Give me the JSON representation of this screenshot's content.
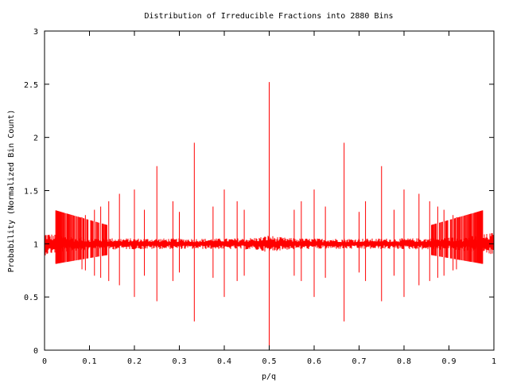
{
  "chart_data": {
    "type": "line",
    "title": "Distribution of Irreducible Fractions into 2880 Bins",
    "xlabel": "p/q",
    "ylabel": "Probability (Normalized Bin Count)",
    "xlim": [
      0,
      1
    ],
    "ylim": [
      0,
      3
    ],
    "x_ticks": [
      "0",
      "0.1",
      "0.2",
      "0.3",
      "0.4",
      "0.5",
      "0.6",
      "0.7",
      "0.8",
      "0.9",
      "1"
    ],
    "y_ticks": [
      "0",
      "0.5",
      "1",
      "1.5",
      "2",
      "2.5",
      "3"
    ],
    "grid": false,
    "legend": "none",
    "bins": 2880,
    "series": [
      {
        "color": "#ff0000",
        "baseline": 1.0,
        "spikes": [
          {
            "x": 0.5,
            "low": 0.0,
            "high": 2.52
          },
          {
            "x": 0.3333,
            "low": 0.27,
            "high": 1.95
          },
          {
            "x": 0.6667,
            "low": 0.27,
            "high": 1.95
          },
          {
            "x": 0.25,
            "low": 0.46,
            "high": 1.73
          },
          {
            "x": 0.75,
            "low": 0.46,
            "high": 1.73
          },
          {
            "x": 0.2,
            "low": 0.5,
            "high": 1.51
          },
          {
            "x": 0.4,
            "low": 0.5,
            "high": 1.51
          },
          {
            "x": 0.6,
            "low": 0.5,
            "high": 1.51
          },
          {
            "x": 0.8,
            "low": 0.5,
            "high": 1.51
          },
          {
            "x": 0.1667,
            "low": 0.61,
            "high": 1.47
          },
          {
            "x": 0.8333,
            "low": 0.61,
            "high": 1.47
          },
          {
            "x": 0.1429,
            "low": 0.65,
            "high": 1.4
          },
          {
            "x": 0.2857,
            "low": 0.65,
            "high": 1.4
          },
          {
            "x": 0.4286,
            "low": 0.65,
            "high": 1.4
          },
          {
            "x": 0.5714,
            "low": 0.65,
            "high": 1.4
          },
          {
            "x": 0.7143,
            "low": 0.65,
            "high": 1.4
          },
          {
            "x": 0.8571,
            "low": 0.65,
            "high": 1.4
          },
          {
            "x": 0.125,
            "low": 0.68,
            "high": 1.35
          },
          {
            "x": 0.375,
            "low": 0.68,
            "high": 1.35
          },
          {
            "x": 0.625,
            "low": 0.68,
            "high": 1.35
          },
          {
            "x": 0.875,
            "low": 0.68,
            "high": 1.35
          },
          {
            "x": 0.1111,
            "low": 0.7,
            "high": 1.32
          },
          {
            "x": 0.2222,
            "low": 0.7,
            "high": 1.32
          },
          {
            "x": 0.4444,
            "low": 0.7,
            "high": 1.32
          },
          {
            "x": 0.5556,
            "low": 0.7,
            "high": 1.32
          },
          {
            "x": 0.7778,
            "low": 0.7,
            "high": 1.32
          },
          {
            "x": 0.8889,
            "low": 0.7,
            "high": 1.32
          },
          {
            "x": 0.3,
            "low": 0.73,
            "high": 1.3
          },
          {
            "x": 0.7,
            "low": 0.73,
            "high": 1.3
          },
          {
            "x": 0.0909,
            "low": 0.75,
            "high": 1.27
          },
          {
            "x": 0.9091,
            "low": 0.75,
            "high": 1.27
          },
          {
            "x": 0.0833,
            "low": 0.76,
            "high": 1.25
          },
          {
            "x": 0.9167,
            "low": 0.76,
            "high": 1.25
          }
        ]
      }
    ]
  }
}
